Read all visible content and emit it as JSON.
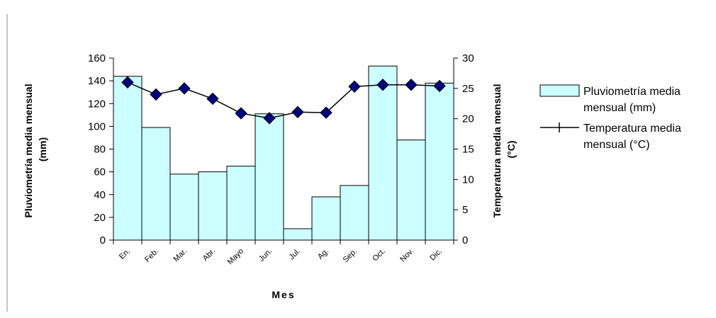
{
  "chart_data": {
    "type": "bar+line",
    "categories": [
      "En.",
      "Feb.",
      "Mar.",
      "Abr.",
      "Mayo",
      "Jun.",
      "Jul.",
      "Ag.",
      "Sep.",
      "Oct.",
      "Nov.",
      "Dic."
    ],
    "bar_series": {
      "name": "Pluviometría media mensual (mm)",
      "values": [
        144,
        99,
        58,
        60,
        65,
        111,
        10,
        38,
        48,
        153,
        88,
        138
      ],
      "color": "#ccffff"
    },
    "line_series": {
      "name": "Temperatura media mensual (°C)",
      "values": [
        26,
        24,
        25,
        23.3,
        20.9,
        20.1,
        21.1,
        21,
        25.3,
        25.6,
        25.6,
        25.4
      ],
      "color": "#000000",
      "marker_color": "#000080"
    },
    "xlabel": "Mes",
    "ylabel_left_lines": [
      "Pluviometría media mensual",
      "(mm)"
    ],
    "ylabel_right_lines": [
      "Temperatura media mensual",
      "(°C)"
    ],
    "y_left": {
      "min": 0,
      "max": 160,
      "step": 20
    },
    "y_right": {
      "min": 0,
      "max": 30,
      "step": 5
    },
    "legend_position": "right",
    "legend": [
      {
        "label_lines": [
          "Pluviometría media",
          "mensual (mm)"
        ]
      },
      {
        "label_lines": [
          "Temperatura media",
          "mensual (°C)"
        ]
      }
    ],
    "grid": false
  }
}
